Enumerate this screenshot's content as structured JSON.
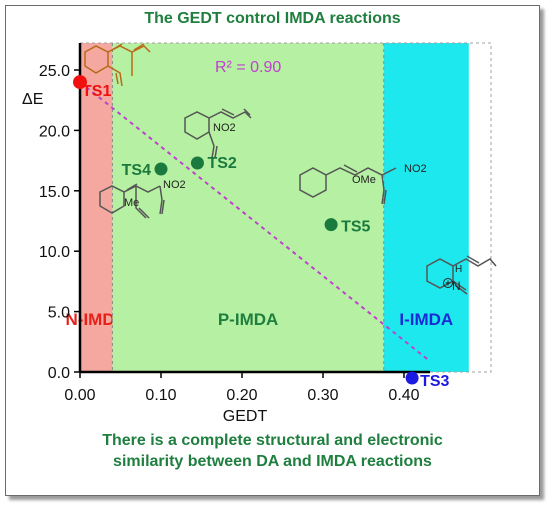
{
  "title": "The GEDT control IMDA reactions",
  "footer": {
    "line1": "There is a complete structural and electronic",
    "line2": "similarity between DA and IMDA reactions"
  },
  "chart_data": {
    "type": "scatter",
    "xlabel": "GEDT",
    "ylabel": "ΔE",
    "xlim": [
      0.0,
      0.48
    ],
    "ylim": [
      0.0,
      27.0
    ],
    "x_ticks": [
      "0.00",
      "0.10",
      "0.20",
      "0.30",
      "0.40"
    ],
    "y_ticks": [
      "0.0",
      "5.0",
      "10.0",
      "15.0",
      "20.0",
      "25.0"
    ],
    "x_tick_values": [
      0.0,
      0.1,
      0.2,
      0.3,
      0.4
    ],
    "y_tick_values": [
      0.0,
      5.0,
      10.0,
      15.0,
      20.0,
      25.0
    ],
    "regions": [
      {
        "label": "N-IMDA",
        "from": 0.0,
        "to": 0.04,
        "color": "#f4a8a0",
        "label_color": "#e8201a"
      },
      {
        "label": "P-IMDA",
        "from": 0.04,
        "to": 0.375,
        "color": "#b6f0a2",
        "label_color": "#1f7f3f"
      },
      {
        "label": "I-IMDA",
        "from": 0.375,
        "to": 0.48,
        "color": "#1de8ee",
        "label_color": "#1a2bd6"
      }
    ],
    "points": [
      {
        "label": "TS1",
        "x": 0.0,
        "y": 24.0,
        "color": "#f01010"
      },
      {
        "label": "TS2",
        "x": 0.145,
        "y": 17.3,
        "color": "#1a7a3e"
      },
      {
        "label": "TS4",
        "x": 0.1,
        "y": 16.8,
        "color": "#1a7a3e"
      },
      {
        "label": "TS5",
        "x": 0.31,
        "y": 12.2,
        "color": "#1a7a3e"
      },
      {
        "label": "TS3",
        "x": 0.41,
        "y": -0.5,
        "color": "#1a1ae0"
      }
    ],
    "fit": {
      "label": "R² = 0.90",
      "x": [
        0.0,
        0.43
      ],
      "y": [
        24.0,
        1.0
      ],
      "color": "#c040d0"
    },
    "structure_labels": [
      "NO2",
      "NO2",
      "Me",
      "OMe",
      "NO2",
      "H",
      "N"
    ]
  },
  "colors": {
    "axis": "#000000",
    "title": "#1f7f3f"
  }
}
